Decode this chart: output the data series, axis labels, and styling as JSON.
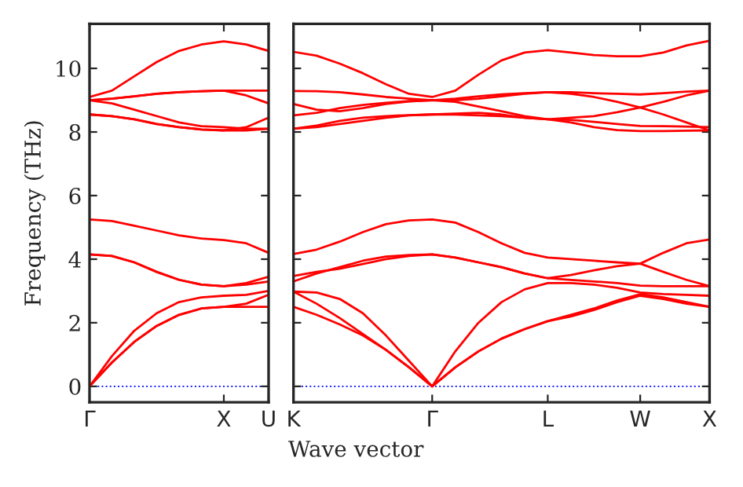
{
  "chart_data": [
    {
      "type": "line",
      "ylabel": "Frequency (THz)",
      "categories": [
        "Γ",
        null,
        null,
        null,
        null,
        null,
        "X",
        null,
        "U"
      ],
      "ylim": [
        -0.5,
        11.4
      ],
      "yticks": [
        0,
        2,
        4,
        6,
        8,
        10
      ],
      "grid": false,
      "ref_lines": [
        {
          "axis": "y",
          "value": 0,
          "color": "#0000ff",
          "line_style": "dotted"
        }
      ],
      "series": [
        {
          "color": "#ff0000",
          "values": [
            0,
            0.75,
            1.4,
            1.9,
            2.25,
            2.45,
            2.5,
            2.5,
            2.5
          ]
        },
        {
          "color": "#ff0000",
          "values": [
            0,
            0.75,
            1.4,
            1.9,
            2.25,
            2.45,
            2.5,
            2.6,
            2.88
          ]
        },
        {
          "color": "#ff0000",
          "values": [
            0,
            0.95,
            1.75,
            2.3,
            2.65,
            2.8,
            2.85,
            2.88,
            3.0
          ]
        },
        {
          "color": "#ff0000",
          "values": [
            4.15,
            4.1,
            3.9,
            3.6,
            3.35,
            3.2,
            3.15,
            3.2,
            3.3
          ]
        },
        {
          "color": "#ff0000",
          "values": [
            4.15,
            4.1,
            3.9,
            3.6,
            3.35,
            3.2,
            3.15,
            3.25,
            3.45
          ]
        },
        {
          "color": "#ff0000",
          "values": [
            5.25,
            5.2,
            5.05,
            4.9,
            4.75,
            4.65,
            4.6,
            4.5,
            4.2
          ]
        },
        {
          "color": "#ff0000",
          "values": [
            8.55,
            8.5,
            8.4,
            8.25,
            8.15,
            8.08,
            8.05,
            8.05,
            8.1
          ]
        },
        {
          "color": "#ff0000",
          "values": [
            8.55,
            8.5,
            8.4,
            8.25,
            8.15,
            8.08,
            8.05,
            8.15,
            8.45
          ]
        },
        {
          "color": "#ff0000",
          "values": [
            9.0,
            8.9,
            8.7,
            8.5,
            8.3,
            8.18,
            8.15,
            8.1,
            8.1
          ]
        },
        {
          "color": "#ff0000",
          "values": [
            9.0,
            9.05,
            9.12,
            9.2,
            9.25,
            9.28,
            9.3,
            9.3,
            9.3
          ]
        },
        {
          "color": "#ff0000",
          "values": [
            9.0,
            9.05,
            9.12,
            9.2,
            9.25,
            9.28,
            9.3,
            9.15,
            8.9
          ]
        },
        {
          "color": "#ff0000",
          "values": [
            9.1,
            9.3,
            9.75,
            10.2,
            10.55,
            10.75,
            10.85,
            10.75,
            10.55
          ]
        }
      ]
    },
    {
      "type": "line",
      "xlabel": "Wave vector",
      "categories": [
        "K",
        null,
        null,
        null,
        null,
        null,
        "Γ",
        null,
        null,
        null,
        null,
        "L",
        null,
        null,
        null,
        "W",
        null,
        null,
        "X"
      ],
      "ylim": [
        -0.5,
        11.4
      ],
      "yticks": [
        0,
        2,
        4,
        6,
        8,
        10
      ],
      "tick_labels": "x",
      "grid": false,
      "ref_lines": [
        {
          "axis": "y",
          "value": 0,
          "color": "#0000ff",
          "line_style": "dotted"
        }
      ],
      "series": [
        {
          "color": "#ff0000",
          "values": [
            2.5,
            2.25,
            1.95,
            1.6,
            1.15,
            0.6,
            0,
            0.6,
            1.1,
            1.5,
            1.8,
            2.05,
            2.2,
            2.4,
            2.65,
            2.85,
            2.75,
            2.6,
            2.5
          ]
        },
        {
          "color": "#ff0000",
          "values": [
            2.98,
            2.6,
            2.15,
            1.65,
            1.15,
            0.6,
            0,
            0.6,
            1.1,
            1.5,
            1.8,
            2.05,
            2.25,
            2.45,
            2.7,
            2.9,
            2.8,
            2.65,
            2.5
          ]
        },
        {
          "color": "#ff0000",
          "values": [
            2.98,
            2.95,
            2.75,
            2.3,
            1.6,
            0.8,
            0,
            1.1,
            2.0,
            2.65,
            3.05,
            3.25,
            3.25,
            3.2,
            3.1,
            2.95,
            2.9,
            2.88,
            2.85
          ]
        },
        {
          "color": "#ff0000",
          "values": [
            3.3,
            3.55,
            3.75,
            3.95,
            4.08,
            4.13,
            4.15,
            4.05,
            3.9,
            3.75,
            3.55,
            3.4,
            3.35,
            3.3,
            3.25,
            3.17,
            3.15,
            3.15,
            3.15
          ]
        },
        {
          "color": "#ff0000",
          "values": [
            3.47,
            3.6,
            3.7,
            3.85,
            4.0,
            4.1,
            4.15,
            4.05,
            3.9,
            3.75,
            3.55,
            3.4,
            3.5,
            3.65,
            3.78,
            3.86,
            3.6,
            3.35,
            3.15
          ]
        },
        {
          "color": "#ff0000",
          "values": [
            4.16,
            4.3,
            4.55,
            4.85,
            5.1,
            5.22,
            5.25,
            5.15,
            4.85,
            4.5,
            4.2,
            4.05,
            4.0,
            3.95,
            3.9,
            3.86,
            4.2,
            4.5,
            4.62
          ]
        },
        {
          "color": "#ff0000",
          "values": [
            8.1,
            8.15,
            8.25,
            8.35,
            8.45,
            8.52,
            8.55,
            8.58,
            8.6,
            8.55,
            8.45,
            8.4,
            8.3,
            8.15,
            8.06,
            8.03,
            8.03,
            8.04,
            8.05
          ]
        },
        {
          "color": "#ff0000",
          "values": [
            8.1,
            8.2,
            8.35,
            8.45,
            8.5,
            8.53,
            8.55,
            8.55,
            8.52,
            8.5,
            8.45,
            8.4,
            8.38,
            8.32,
            8.25,
            8.19,
            8.18,
            8.17,
            8.15
          ]
        },
        {
          "color": "#ff0000",
          "values": [
            8.52,
            8.6,
            8.75,
            8.85,
            8.92,
            8.97,
            9.0,
            8.95,
            8.8,
            8.65,
            8.5,
            8.4,
            8.45,
            8.5,
            8.62,
            8.77,
            8.55,
            8.3,
            8.05
          ]
        },
        {
          "color": "#ff0000",
          "values": [
            8.88,
            8.7,
            8.65,
            8.75,
            8.88,
            8.96,
            9.0,
            9.05,
            9.12,
            9.18,
            9.22,
            9.25,
            9.2,
            9.1,
            8.95,
            8.77,
            8.95,
            9.15,
            9.3
          ]
        },
        {
          "color": "#ff0000",
          "values": [
            9.29,
            9.28,
            9.25,
            9.18,
            9.1,
            9.05,
            9.0,
            9.0,
            9.05,
            9.12,
            9.2,
            9.25,
            9.25,
            9.22,
            9.2,
            9.18,
            9.22,
            9.27,
            9.3
          ]
        },
        {
          "color": "#ff0000",
          "values": [
            10.52,
            10.4,
            10.15,
            9.85,
            9.5,
            9.2,
            9.1,
            9.3,
            9.8,
            10.25,
            10.5,
            10.57,
            10.5,
            10.42,
            10.38,
            10.38,
            10.5,
            10.72,
            10.87
          ]
        }
      ]
    }
  ]
}
